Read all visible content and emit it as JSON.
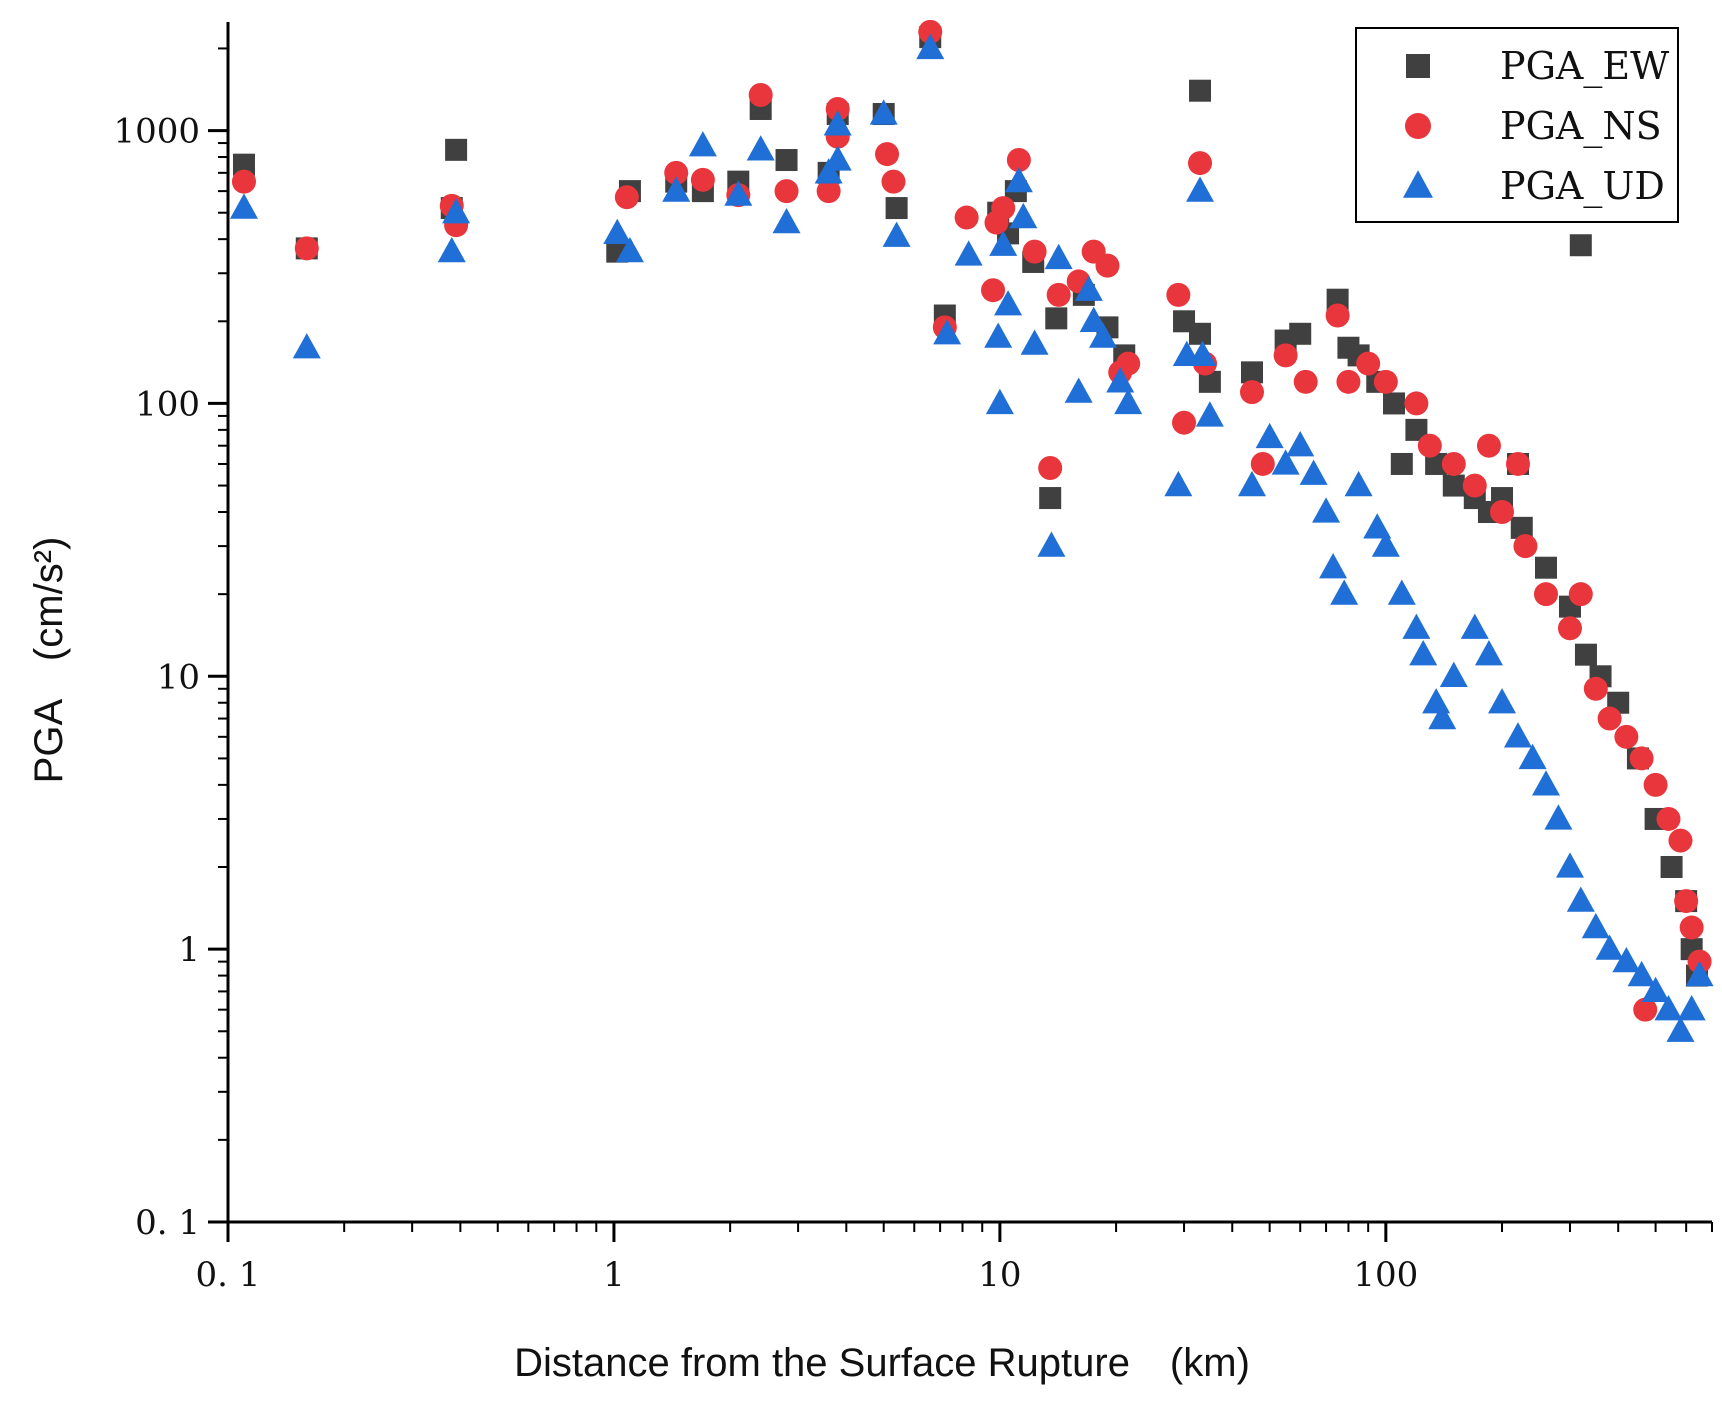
{
  "chart_data": {
    "type": "scatter",
    "title": "",
    "xlabel": "Distance from the Surface Rupture　(km)",
    "ylabel": "PGA　(cm/s²)",
    "xscale": "log",
    "yscale": "log",
    "xlim": [
      0.1,
      700
    ],
    "ylim": [
      0.1,
      2500
    ],
    "x_ticks": [
      0.1,
      1,
      10,
      100
    ],
    "x_tick_labels": [
      "0. 1",
      "1",
      "10",
      "100"
    ],
    "y_ticks": [
      0.1,
      1,
      10,
      100,
      1000
    ],
    "y_tick_labels": [
      "0. 1",
      "1",
      "10",
      "100",
      "1000"
    ],
    "legend_position": "top-right",
    "series": [
      {
        "name": "PGA_EW",
        "marker": "square",
        "color": "#404040",
        "points": [
          [
            0.11,
            750
          ],
          [
            0.16,
            370
          ],
          [
            0.39,
            850
          ],
          [
            0.38,
            520
          ],
          [
            1.02,
            360
          ],
          [
            1.1,
            600
          ],
          [
            1.45,
            650
          ],
          [
            1.7,
            600
          ],
          [
            2.1,
            650
          ],
          [
            2.4,
            1200
          ],
          [
            2.8,
            780
          ],
          [
            3.6,
            700
          ],
          [
            3.8,
            1150
          ],
          [
            5.0,
            1150
          ],
          [
            5.4,
            520
          ],
          [
            6.6,
            2200
          ],
          [
            7.2,
            210
          ],
          [
            9.9,
            500
          ],
          [
            10.5,
            420
          ],
          [
            11.0,
            600
          ],
          [
            12.2,
            330
          ],
          [
            13.5,
            45
          ],
          [
            14.0,
            205
          ],
          [
            16.5,
            250
          ],
          [
            19.0,
            190
          ],
          [
            21.0,
            150
          ],
          [
            30.0,
            200
          ],
          [
            33.0,
            1400
          ],
          [
            33.0,
            180
          ],
          [
            35.0,
            120
          ],
          [
            45.0,
            130
          ],
          [
            55.0,
            170
          ],
          [
            60.0,
            180
          ],
          [
            75.0,
            240
          ],
          [
            80.0,
            160
          ],
          [
            85.0,
            150
          ],
          [
            95.0,
            120
          ],
          [
            105.0,
            100
          ],
          [
            110.0,
            60
          ],
          [
            120.0,
            80
          ],
          [
            135.0,
            60
          ],
          [
            150.0,
            50
          ],
          [
            170.0,
            45
          ],
          [
            185.0,
            40
          ],
          [
            200.0,
            45
          ],
          [
            220.0,
            60
          ],
          [
            225.0,
            35
          ],
          [
            260.0,
            25
          ],
          [
            300.0,
            18
          ],
          [
            320.0,
            380
          ],
          [
            330.0,
            12
          ],
          [
            360.0,
            10
          ],
          [
            400.0,
            8
          ],
          [
            450.0,
            5
          ],
          [
            500.0,
            3
          ],
          [
            550.0,
            2
          ],
          [
            600.0,
            1.5
          ],
          [
            620.0,
            1.0
          ],
          [
            640.0,
            0.8
          ]
        ]
      },
      {
        "name": "PGA_NS",
        "marker": "circle",
        "color": "#e8363c",
        "points": [
          [
            0.11,
            650
          ],
          [
            0.16,
            370
          ],
          [
            0.38,
            530
          ],
          [
            0.39,
            450
          ],
          [
            1.08,
            570
          ],
          [
            1.45,
            700
          ],
          [
            1.7,
            660
          ],
          [
            2.1,
            580
          ],
          [
            2.4,
            1350
          ],
          [
            2.8,
            600
          ],
          [
            3.6,
            600
          ],
          [
            3.8,
            1200
          ],
          [
            3.8,
            950
          ],
          [
            5.1,
            820
          ],
          [
            5.3,
            650
          ],
          [
            6.6,
            2300
          ],
          [
            7.2,
            190
          ],
          [
            8.2,
            480
          ],
          [
            9.6,
            260
          ],
          [
            9.8,
            460
          ],
          [
            10.2,
            520
          ],
          [
            11.2,
            780
          ],
          [
            12.3,
            360
          ],
          [
            13.5,
            58
          ],
          [
            14.2,
            250
          ],
          [
            16.0,
            280
          ],
          [
            17.5,
            360
          ],
          [
            19.0,
            320
          ],
          [
            20.5,
            130
          ],
          [
            21.5,
            140
          ],
          [
            29.0,
            250
          ],
          [
            30.0,
            85
          ],
          [
            33.0,
            760
          ],
          [
            34.0,
            140
          ],
          [
            45.0,
            110
          ],
          [
            48.0,
            60
          ],
          [
            55.0,
            150
          ],
          [
            62.0,
            120
          ],
          [
            75.0,
            210
          ],
          [
            80.0,
            120
          ],
          [
            90.0,
            140
          ],
          [
            100.0,
            120
          ],
          [
            120.0,
            100
          ],
          [
            130.0,
            70
          ],
          [
            150.0,
            60
          ],
          [
            170.0,
            50
          ],
          [
            185.0,
            70
          ],
          [
            200.0,
            40
          ],
          [
            220.0,
            60
          ],
          [
            230.0,
            30
          ],
          [
            260.0,
            20
          ],
          [
            300.0,
            15
          ],
          [
            320.0,
            20
          ],
          [
            350.0,
            9
          ],
          [
            380.0,
            7
          ],
          [
            420.0,
            6
          ],
          [
            460.0,
            5
          ],
          [
            500.0,
            4
          ],
          [
            540.0,
            3
          ],
          [
            580.0,
            2.5
          ],
          [
            600.0,
            1.5
          ],
          [
            620.0,
            1.2
          ],
          [
            650.0,
            0.9
          ],
          [
            470.0,
            0.6
          ]
        ]
      },
      {
        "name": "PGA_UD",
        "marker": "triangle",
        "color": "#1f6fd6",
        "points": [
          [
            0.11,
            520
          ],
          [
            0.16,
            160
          ],
          [
            0.38,
            360
          ],
          [
            0.39,
            500
          ],
          [
            1.02,
            420
          ],
          [
            1.1,
            360
          ],
          [
            1.45,
            600
          ],
          [
            1.7,
            880
          ],
          [
            2.1,
            580
          ],
          [
            2.4,
            850
          ],
          [
            2.8,
            460
          ],
          [
            3.6,
            700
          ],
          [
            3.8,
            780
          ],
          [
            3.8,
            1050
          ],
          [
            5.0,
            1150
          ],
          [
            5.4,
            410
          ],
          [
            6.6,
            2000
          ],
          [
            7.3,
            180
          ],
          [
            8.3,
            350
          ],
          [
            9.9,
            175
          ],
          [
            10.0,
            100
          ],
          [
            10.2,
            380
          ],
          [
            10.5,
            230
          ],
          [
            11.2,
            650
          ],
          [
            11.5,
            480
          ],
          [
            12.3,
            165
          ],
          [
            13.6,
            30
          ],
          [
            14.2,
            340
          ],
          [
            16.0,
            110
          ],
          [
            17.0,
            260
          ],
          [
            17.5,
            200
          ],
          [
            18.5,
            175
          ],
          [
            20.5,
            120
          ],
          [
            21.5,
            100
          ],
          [
            29.0,
            50
          ],
          [
            30.5,
            150
          ],
          [
            33.0,
            600
          ],
          [
            33.5,
            150
          ],
          [
            35.0,
            90
          ],
          [
            45.0,
            50
          ],
          [
            50.0,
            75
          ],
          [
            55.0,
            60
          ],
          [
            60.0,
            70
          ],
          [
            65.0,
            55
          ],
          [
            70.0,
            40
          ],
          [
            73.0,
            25
          ],
          [
            78.0,
            20
          ],
          [
            85.0,
            50
          ],
          [
            95.0,
            35
          ],
          [
            100.0,
            30
          ],
          [
            110.0,
            20
          ],
          [
            120.0,
            15
          ],
          [
            125.0,
            12
          ],
          [
            135.0,
            8
          ],
          [
            140.0,
            7
          ],
          [
            150.0,
            10
          ],
          [
            170.0,
            15
          ],
          [
            185.0,
            12
          ],
          [
            200.0,
            8
          ],
          [
            220.0,
            6
          ],
          [
            240.0,
            5
          ],
          [
            260.0,
            4
          ],
          [
            280.0,
            3
          ],
          [
            300.0,
            2
          ],
          [
            320.0,
            1.5
          ],
          [
            350.0,
            1.2
          ],
          [
            380.0,
            1.0
          ],
          [
            420.0,
            0.9
          ],
          [
            460.0,
            0.8
          ],
          [
            500.0,
            0.7
          ],
          [
            540.0,
            0.6
          ],
          [
            580.0,
            0.5
          ],
          [
            620.0,
            0.6
          ],
          [
            650.0,
            0.8
          ]
        ]
      }
    ]
  }
}
